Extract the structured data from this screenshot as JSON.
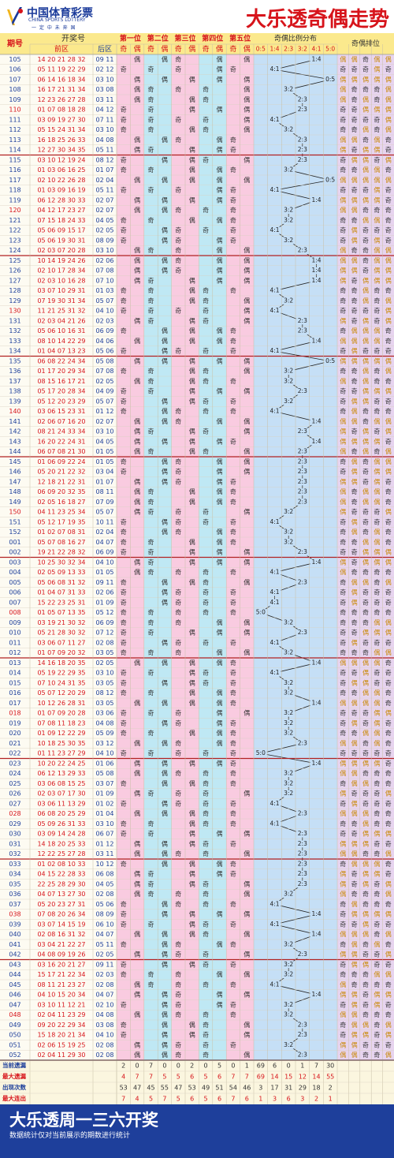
{
  "header": {
    "logo_cn": "中国体育彩票",
    "logo_en": "CHINA SPORTS LOTTERY",
    "logo_slogan": "一 定 中 未 奔 国",
    "title": "大乐透奇偶走势"
  },
  "columns": {
    "period": "期号",
    "draw": "开奖号",
    "front": "前区",
    "back": "后区",
    "positions": [
      "第一位",
      "第二位",
      "第三位",
      "第四位",
      "第五位"
    ],
    "odd": "奇",
    "even": "偶",
    "ratio_title": "奇偶比例分布",
    "ratios": [
      "0:5",
      "1:4",
      "2:3",
      "3:2",
      "4:1",
      "5:0"
    ],
    "arrangement": "奇偶排位"
  },
  "colors": {
    "red": "#d7141b",
    "blue": "#1e3f9b",
    "head_yellow": "#fbe98d",
    "band_pink": "#f9cbe0",
    "band_blue": "#bfe8f4",
    "band_ratio": "#c5dff6",
    "band_arr": "#e7d4ef"
  },
  "chart_data": {
    "type": "table",
    "title": "大乐透奇偶走势",
    "rows": [
      {
        "p": "105",
        "f": "14 20 21 28 32",
        "b": "09 11"
      },
      {
        "p": "106",
        "f": "05 11 19 22 29",
        "b": "02 12"
      },
      {
        "p": "107",
        "f": "06 14 16 18 34",
        "b": "03 10"
      },
      {
        "p": "108",
        "f": "16 17 21 31 34",
        "b": "03 08"
      },
      {
        "p": "109",
        "f": "12 23 26 27 28",
        "b": "03 11"
      },
      {
        "p": "110",
        "f": "01 07 08 18 28",
        "b": "04 12"
      },
      {
        "p": "111",
        "f": "03 09 19 27 30",
        "b": "07 11"
      },
      {
        "p": "112",
        "f": "05 15 24 31 34",
        "b": "03 10"
      },
      {
        "p": "113",
        "f": "16 18 25 26 33",
        "b": "04 08"
      },
      {
        "p": "114",
        "f": "12 27 30 34 35",
        "b": "05 11"
      },
      {
        "p": "115",
        "f": "03 10 12 19 24",
        "b": "08 12"
      },
      {
        "p": "116",
        "f": "01 03 06 16 25",
        "b": "01 07"
      },
      {
        "p": "117",
        "f": "02 10 22 26 28",
        "b": "02 04"
      },
      {
        "p": "118",
        "f": "01 03 09 16 19",
        "b": "05 11"
      },
      {
        "p": "119",
        "f": "06 12 28 30 33",
        "b": "02 07"
      },
      {
        "p": "120",
        "f": "04 12 17 23 27",
        "b": "02 07"
      },
      {
        "p": "121",
        "f": "07 15 18 24 33",
        "b": "04 05"
      },
      {
        "p": "122",
        "f": "05 06 09 15 17",
        "b": "02 05"
      },
      {
        "p": "123",
        "f": "05 06 19 30 31",
        "b": "08 09"
      },
      {
        "p": "124",
        "f": "02 03 07 20 28",
        "b": "03 10"
      },
      {
        "p": "125",
        "f": "10 14 19 24 26",
        "b": "02 06"
      },
      {
        "p": "126",
        "f": "02 10 17 28 34",
        "b": "07 08"
      },
      {
        "p": "127",
        "f": "02 03 10 16 28",
        "b": "07 10"
      },
      {
        "p": "128",
        "f": "03 07 10 29 31",
        "b": "01 03"
      },
      {
        "p": "129",
        "f": "07 19 30 31 34",
        "b": "05 07"
      },
      {
        "p": "130",
        "f": "11 21 25 31 32",
        "b": "04 10"
      },
      {
        "p": "131",
        "f": "02 03 04 21 26",
        "b": "02 03"
      },
      {
        "p": "132",
        "f": "05 06 10 16 31",
        "b": "06 09"
      },
      {
        "p": "133",
        "f": "08 10 14 22 29",
        "b": "04 06"
      },
      {
        "p": "134",
        "f": "01 04 07 13 23",
        "b": "05 06"
      },
      {
        "p": "135",
        "f": "06 08 22 24 34",
        "b": "05 08"
      },
      {
        "p": "136",
        "f": "01 17 20 29 34",
        "b": "07 08"
      },
      {
        "p": "137",
        "f": "08 15 16 17 21",
        "b": "02 05"
      },
      {
        "p": "138",
        "f": "05 17 20 28 34",
        "b": "04 09"
      },
      {
        "p": "139",
        "f": "05 12 20 23 29",
        "b": "05 07"
      },
      {
        "p": "140",
        "f": "03 06 15 23 31",
        "b": "01 12"
      },
      {
        "p": "141",
        "f": "02 06 07 16 20",
        "b": "02 07"
      },
      {
        "p": "142",
        "f": "08 21 24 33 34",
        "b": "03 10"
      },
      {
        "p": "143",
        "f": "16 20 22 24 31",
        "b": "04 05"
      },
      {
        "p": "144",
        "f": "06 07 08 21 30",
        "b": "01 05"
      },
      {
        "p": "145",
        "f": "01 06 09 22 24",
        "b": "01 05"
      },
      {
        "p": "146",
        "f": "05 20 21 22 32",
        "b": "03 04"
      },
      {
        "p": "147",
        "f": "12 18 21 22 31",
        "b": "01 07"
      },
      {
        "p": "148",
        "f": "06 09 20 32 35",
        "b": "08 11"
      },
      {
        "p": "149",
        "f": "02 05 16 18 27",
        "b": "07 09"
      },
      {
        "p": "150",
        "f": "04 11 23 25 34",
        "b": "05 07"
      },
      {
        "p": "151",
        "f": "05 12 17 19 35",
        "b": "10 11"
      },
      {
        "p": "152",
        "f": "01 02 07 08 31",
        "b": "02 04"
      },
      {
        "p": "001",
        "f": "05 07 08 16 27",
        "b": "04 07"
      },
      {
        "p": "002",
        "f": "19 21 22 28 32",
        "b": "06 09"
      },
      {
        "p": "003",
        "f": "10 25 30 32 34",
        "b": "04 10"
      },
      {
        "p": "004",
        "f": "02 05 09 13 33",
        "b": "01 05"
      },
      {
        "p": "005",
        "f": "05 06 08 31 32",
        "b": "09 11"
      },
      {
        "p": "006",
        "f": "01 04 07 31 33",
        "b": "02 06"
      },
      {
        "p": "007",
        "f": "15 22 23 25 31",
        "b": "01 09"
      },
      {
        "p": "008",
        "f": "01 05 07 13 35",
        "b": "05 12"
      },
      {
        "p": "009",
        "f": "03 19 21 30 32",
        "b": "06 09"
      },
      {
        "p": "010",
        "f": "05 21 28 30 32",
        "b": "07 12"
      },
      {
        "p": "011",
        "f": "03 06 07 11 27",
        "b": "02 08"
      },
      {
        "p": "012",
        "f": "01 07 09 20 32",
        "b": "03 05"
      },
      {
        "p": "013",
        "f": "14 16 18 20 35",
        "b": "02 05"
      },
      {
        "p": "014",
        "f": "05 19 22 29 35",
        "b": "03 10"
      },
      {
        "p": "015",
        "f": "07 10 24 31 35",
        "b": "03 05"
      },
      {
        "p": "016",
        "f": "05 07 12 20 29",
        "b": "08 12"
      },
      {
        "p": "017",
        "f": "10 12 26 28 31",
        "b": "03 05"
      },
      {
        "p": "018",
        "f": "01 07 09 20 28",
        "b": "03 06"
      },
      {
        "p": "019",
        "f": "07 08 11 18 23",
        "b": "04 08"
      },
      {
        "p": "020",
        "f": "01 09 12 22 29",
        "b": "05 09"
      },
      {
        "p": "021",
        "f": "10 18 25 30 35",
        "b": "03 12"
      },
      {
        "p": "022",
        "f": "01 11 23 27 29",
        "b": "04 10"
      },
      {
        "p": "023",
        "f": "10 20 22 24 25",
        "b": "01 06"
      },
      {
        "p": "024",
        "f": "06 12 13 29 33",
        "b": "05 08"
      },
      {
        "p": "025",
        "f": "03 06 08 15 25",
        "b": "03 07"
      },
      {
        "p": "026",
        "f": "02 03 07 17 30",
        "b": "01 09"
      },
      {
        "p": "027",
        "f": "03 06 11 13 29",
        "b": "01 02"
      },
      {
        "p": "028",
        "f": "06 08 20 25 29",
        "b": "01 04"
      },
      {
        "p": "029",
        "f": "05 09 26 31 33",
        "b": "03 10"
      },
      {
        "p": "030",
        "f": "03 09 14 24 28",
        "b": "06 07"
      },
      {
        "p": "031",
        "f": "14 18 20 25 33",
        "b": "01 12"
      },
      {
        "p": "032",
        "f": "12 22 25 27 28",
        "b": "03 11"
      },
      {
        "p": "033",
        "f": "01 02 08 10 33",
        "b": "10 12"
      },
      {
        "p": "034",
        "f": "04 15 22 28 33",
        "b": "06 08"
      },
      {
        "p": "035",
        "f": "22 25 28 29 30",
        "b": "04 05"
      },
      {
        "p": "036",
        "f": "04 07 13 27 30",
        "b": "02 08"
      },
      {
        "p": "037",
        "f": "05 20 23 27 31",
        "b": "05 06"
      },
      {
        "p": "038",
        "f": "07 08 20 26 34",
        "b": "08 09"
      },
      {
        "p": "039",
        "f": "03 07 14 15 19",
        "b": "06 10"
      },
      {
        "p": "040",
        "f": "02 08 16 31 32",
        "b": "04 07"
      },
      {
        "p": "041",
        "f": "03 04 21 22 27",
        "b": "05 11"
      },
      {
        "p": "042",
        "f": "04 08 09 19 26",
        "b": "02 05"
      },
      {
        "p": "043",
        "f": "03 16 20 21 27",
        "b": "09 11"
      },
      {
        "p": "044",
        "f": "15 17 21 22 34",
        "b": "02 03"
      },
      {
        "p": "045",
        "f": "08 11 21 23 27",
        "b": "02 08"
      },
      {
        "p": "046",
        "f": "04 10 15 20 34",
        "b": "04 07"
      },
      {
        "p": "047",
        "f": "03 10 11 12 21",
        "b": "02 10"
      },
      {
        "p": "048",
        "f": "02 04 11 23 29",
        "b": "04 08"
      },
      {
        "p": "049",
        "f": "09 20 22 29 34",
        "b": "03 08"
      },
      {
        "p": "050",
        "f": "15 18 20 21 34",
        "b": "04 10"
      },
      {
        "p": "051",
        "f": "02 06 15 19 25",
        "b": "02 08"
      },
      {
        "p": "052",
        "f": "02 04 11 29 30",
        "b": "02 08"
      }
    ],
    "stats": [
      {
        "label": "当前遗漏",
        "color": "black",
        "values": [
          2,
          0,
          7,
          0,
          0,
          2,
          0,
          5,
          0,
          1,
          69,
          6,
          0,
          1,
          7,
          30
        ]
      },
      {
        "label": "最大遗漏",
        "color": "red",
        "values": [
          4,
          7,
          7,
          5,
          5,
          6,
          5,
          6,
          7,
          7,
          69,
          14,
          15,
          12,
          14,
          55
        ]
      },
      {
        "label": "出现次数",
        "color": "black",
        "values": [
          53,
          47,
          45,
          55,
          47,
          53,
          49,
          51,
          54,
          46,
          3,
          17,
          31,
          29,
          18,
          2
        ]
      },
      {
        "label": "最大连出",
        "color": "red",
        "values": [
          7,
          4,
          5,
          7,
          5,
          6,
          5,
          6,
          7,
          6,
          1,
          3,
          6,
          3,
          2,
          1
        ]
      }
    ]
  },
  "footer": {
    "slogan": "大乐透周一三六开奖",
    "note": "数据统计仅对当前展示的期数进行统计"
  }
}
